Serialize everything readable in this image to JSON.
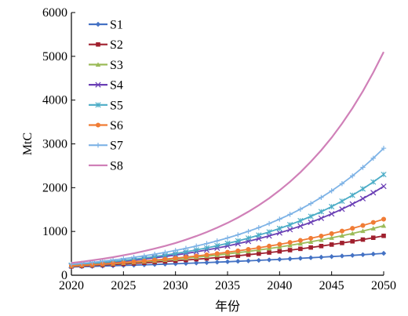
{
  "chart_data": {
    "type": "line",
    "title": "",
    "xlabel": "年份",
    "ylabel": "MtC",
    "xlim": [
      2020,
      2050
    ],
    "ylim": [
      0,
      6000
    ],
    "x_ticks": [
      2020,
      2025,
      2030,
      2035,
      2040,
      2045,
      2050
    ],
    "y_ticks": [
      0,
      1000,
      2000,
      3000,
      4000,
      5000,
      6000
    ],
    "grid": false,
    "legend_position": "top-left",
    "x": [
      2020,
      2021,
      2022,
      2023,
      2024,
      2025,
      2026,
      2027,
      2028,
      2029,
      2030,
      2031,
      2032,
      2033,
      2034,
      2035,
      2036,
      2037,
      2038,
      2039,
      2040,
      2041,
      2042,
      2043,
      2044,
      2045,
      2046,
      2047,
      2048,
      2049,
      2050
    ],
    "series": [
      {
        "name": "S1",
        "color": "#4472c4",
        "marker": "diamond",
        "start": 190,
        "end": 500
      },
      {
        "name": "S2",
        "color": "#a0202e",
        "marker": "square",
        "start": 200,
        "end": 900
      },
      {
        "name": "S3",
        "color": "#9bbb59",
        "marker": "triangle",
        "start": 210,
        "end": 1130
      },
      {
        "name": "S4",
        "color": "#6a3fb5",
        "marker": "x",
        "start": 220,
        "end": 2030
      },
      {
        "name": "S5",
        "color": "#4bacc6",
        "marker": "star",
        "start": 230,
        "end": 2300
      },
      {
        "name": "S6",
        "color": "#f07c35",
        "marker": "circle",
        "start": 215,
        "end": 1280
      },
      {
        "name": "S7",
        "color": "#7eb3e6",
        "marker": "plus",
        "start": 250,
        "end": 2900
      },
      {
        "name": "S8",
        "color": "#d080b8",
        "marker": "none",
        "start": 280,
        "end": 5100
      }
    ]
  }
}
